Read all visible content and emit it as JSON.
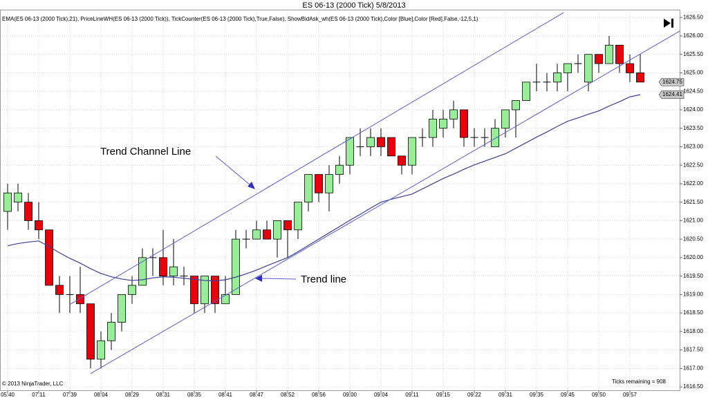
{
  "chart_data": {
    "type": "candlestick",
    "title": "ES 06-13 (2000 Tick)  5/8/2013",
    "subtitle": "EMA(ES 06-13 (2000 Tick),21), PriceLineWH(ES 06-13 (2000 Tick)), TickCounter(ES 06-13 (2000 Tick),True,False), ShowBidAsk_wh(ES 06-13 (2000 Tick),Color [Blue],Color [Red],False,-12,5,1)",
    "x": [
      "05:40",
      null,
      null,
      "07:11",
      null,
      null,
      "07:39",
      null,
      null,
      "08:04",
      null,
      null,
      "08:29",
      null,
      null,
      "08:31",
      null,
      null,
      "08:35",
      null,
      null,
      "08:41",
      null,
      null,
      "08:47",
      null,
      null,
      "08:52",
      null,
      null,
      "08:56",
      null,
      null,
      "09:00",
      null,
      null,
      "09:04",
      null,
      null,
      "09:11",
      null,
      null,
      "09:15",
      null,
      null,
      "09:22",
      null,
      null,
      "09:31",
      null,
      null,
      "09:35",
      null,
      null,
      "09:45",
      null,
      null,
      "09:50",
      null,
      null,
      "09:57",
      null
    ],
    "open": [
      1621.25,
      1621.5,
      1621.5,
      1621.0,
      1620.75,
      1619.25,
      1619.0,
      1619.0,
      1618.75,
      1617.25,
      1617.75,
      1618.25,
      1619.0,
      1619.25,
      1620.0,
      1620.0,
      1619.5,
      1619.5,
      1619.5,
      1618.75,
      1619.5,
      1618.75,
      1619.0,
      1620.5,
      1620.5,
      1620.75,
      1620.5,
      1621.0,
      1620.75,
      1621.5,
      1622.25,
      1621.75,
      1622.25,
      1622.5,
      1623.0,
      1623.0,
      1623.25,
      1623.25,
      1622.75,
      1622.5,
      1623.25,
      1623.25,
      1623.5,
      1623.75,
      1624.0,
      1623.25,
      1623.25,
      1623.0,
      1623.5,
      1624.0,
      1624.25,
      1624.75,
      1624.75,
      1624.75,
      1625.0,
      1625.25,
      1624.75,
      1625.5,
      1625.25,
      1625.75,
      1625.25,
      1625.0
    ],
    "high": [
      1622.0,
      1622.0,
      1621.75,
      1621.5,
      1620.75,
      1619.5,
      1619.5,
      1619.75,
      1618.75,
      1618.0,
      1618.5,
      1619.0,
      1619.5,
      1620.25,
      1620.25,
      1620.75,
      1620.5,
      1619.75,
      1619.5,
      1619.5,
      1619.5,
      1619.5,
      1620.75,
      1620.75,
      1621.0,
      1621.0,
      1621.0,
      1621.0,
      1621.5,
      1622.25,
      1622.25,
      1622.5,
      1622.75,
      1623.25,
      1623.5,
      1623.5,
      1623.5,
      1623.25,
      1622.75,
      1623.25,
      1623.5,
      1624.0,
      1624.0,
      1624.25,
      1624.0,
      1623.5,
      1623.5,
      1623.75,
      1624.0,
      1624.25,
      1624.75,
      1625.25,
      1625.0,
      1625.25,
      1625.25,
      1625.5,
      1625.5,
      1625.5,
      1626.0,
      1625.75,
      1625.5,
      1625.5
    ],
    "low": [
      1620.75,
      1621.25,
      1620.75,
      1620.5,
      1619.25,
      1618.5,
      1618.5,
      1618.5,
      1617.0,
      1617.0,
      1617.5,
      1618.0,
      1618.75,
      1619.25,
      1619.5,
      1619.25,
      1619.25,
      1619.25,
      1618.5,
      1618.5,
      1618.5,
      1618.75,
      1619.0,
      1620.25,
      1620.5,
      1620.5,
      1620.0,
      1620.0,
      1620.5,
      1621.25,
      1621.5,
      1621.25,
      1622.0,
      1622.25,
      1622.75,
      1622.75,
      1622.75,
      1622.75,
      1622.25,
      1622.25,
      1623.0,
      1623.0,
      1623.25,
      1623.5,
      1623.0,
      1623.0,
      1623.0,
      1623.0,
      1623.25,
      1623.25,
      1624.25,
      1624.5,
      1624.5,
      1624.5,
      1624.5,
      1625.0,
      1624.5,
      1625.0,
      1625.25,
      1625.0,
      1624.75,
      1624.75
    ],
    "close": [
      1621.75,
      1621.75,
      1621.0,
      1620.75,
      1619.25,
      1619.0,
      1619.0,
      1618.75,
      1617.25,
      1617.75,
      1618.25,
      1619.0,
      1619.25,
      1620.0,
      1620.0,
      1619.5,
      1619.75,
      1619.5,
      1618.75,
      1619.5,
      1618.75,
      1619.0,
      1620.5,
      1620.5,
      1620.75,
      1620.5,
      1621.0,
      1620.75,
      1621.5,
      1622.25,
      1621.75,
      1622.25,
      1622.5,
      1623.25,
      1623.0,
      1623.25,
      1623.0,
      1622.75,
      1622.5,
      1623.25,
      1623.25,
      1623.75,
      1623.75,
      1624.0,
      1623.25,
      1623.25,
      1623.25,
      1623.5,
      1624.0,
      1624.25,
      1624.75,
      1624.75,
      1624.75,
      1625.0,
      1625.25,
      1625.25,
      1625.5,
      1625.25,
      1625.75,
      1625.25,
      1625.0,
      1624.75
    ],
    "up_color": "#98ee98",
    "down_color": "#e8000c",
    "overlay": {
      "color": "#3c3c96",
      "values": [
        1620.32,
        1620.38,
        1620.42,
        1620.45,
        1620.3,
        1620.13,
        1619.98,
        1619.85,
        1619.7,
        1619.57,
        1619.48,
        1619.42,
        1619.38,
        1619.4,
        1619.45,
        1619.48,
        1619.47,
        1619.44,
        1619.41,
        1619.38,
        1619.37,
        1619.4,
        1619.47,
        1619.56,
        1619.66,
        1619.78,
        1619.89,
        1620.0,
        1620.16,
        1620.33,
        1620.5,
        1620.67,
        1620.84,
        1621.01,
        1621.17,
        1621.34,
        1621.5,
        1621.58,
        1621.65,
        1621.72,
        1621.86,
        1622.0,
        1622.14,
        1622.26,
        1622.39,
        1622.51,
        1622.61,
        1622.71,
        1622.81,
        1622.96,
        1623.11,
        1623.26,
        1623.4,
        1623.55,
        1623.69,
        1623.78,
        1623.88,
        1623.97,
        1624.1,
        1624.22,
        1624.35,
        1624.41
      ]
    },
    "trend_lines": [
      {
        "color": "#5a5ad2",
        "x": [
          6,
          53.6
        ],
        "y": [
          1618.73,
          1626.63
        ]
      },
      {
        "color": "#5a5ad2",
        "x": [
          8,
          64.8
        ],
        "y": [
          1616.86,
          1626.13
        ]
      }
    ],
    "annotations": [
      {
        "text": "Trend Channel Line"
      },
      {
        "text": "Trend line"
      }
    ],
    "price_markers": [
      {
        "value": 1624.75,
        "label": "1624.75"
      },
      {
        "value": 1624.41,
        "label": "1624.41"
      }
    ],
    "ylim": [
      1616.39,
      1626.71
    ],
    "yticks": [
      {
        "value": 1616.5,
        "label": "1616.50"
      },
      {
        "value": 1617,
        "label": "1617.00"
      },
      {
        "value": 1617.5,
        "label": "1617.50"
      },
      {
        "value": 1618,
        "label": "1618.00"
      },
      {
        "value": 1618.5,
        "label": "1618.50"
      },
      {
        "value": 1619,
        "label": "1619.00"
      },
      {
        "value": 1619.5,
        "label": "1619.50"
      },
      {
        "value": 1620,
        "label": "1620.00"
      },
      {
        "value": 1620.5,
        "label": "1620.50"
      },
      {
        "value": 1621,
        "label": "1621.00"
      },
      {
        "value": 1621.5,
        "label": "1621.50"
      },
      {
        "value": 1622,
        "label": "1622.00"
      },
      {
        "value": 1622.5,
        "label": "1622.50"
      },
      {
        "value": 1623,
        "label": "1623.00"
      },
      {
        "value": 1623.5,
        "label": "1623.50"
      },
      {
        "value": 1624,
        "label": "1624.00"
      },
      {
        "value": 1624.5,
        "label": "1624.50"
      },
      {
        "value": 1625,
        "label": "1625.00"
      },
      {
        "value": 1625.5,
        "label": "1625.50"
      },
      {
        "value": 1626,
        "label": "1626.00"
      },
      {
        "value": 1626.5,
        "label": "1626.50"
      }
    ],
    "grid": true,
    "copyright": "© 2013 NinjaTrader, LLC",
    "status": "Ticks remaining = 908"
  }
}
